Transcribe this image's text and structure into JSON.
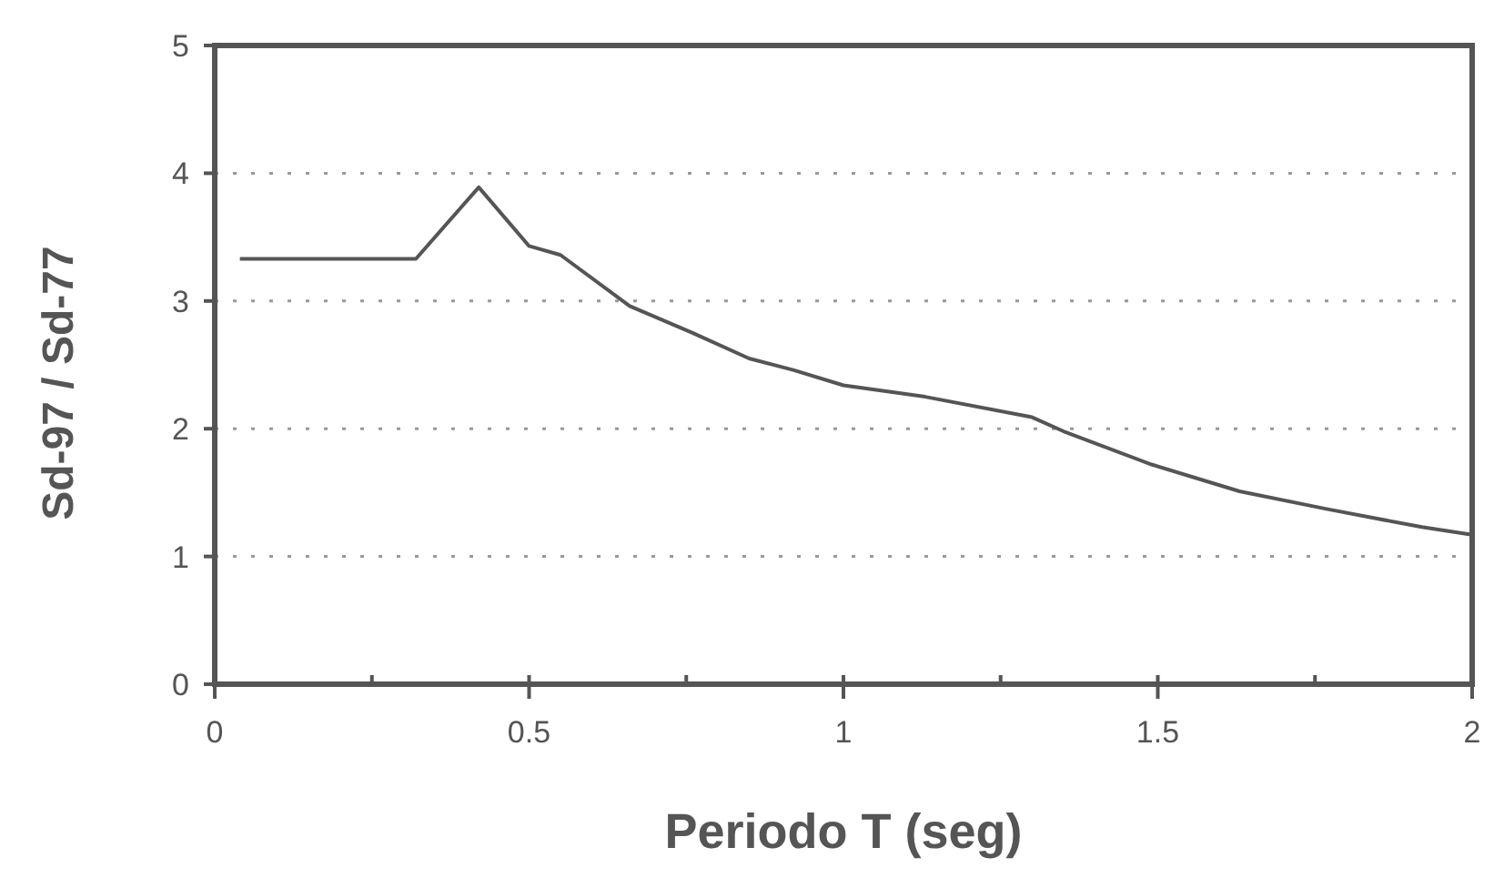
{
  "chart_data": {
    "type": "line",
    "xlabel": "Periodo  T (seg)",
    "ylabel": "Sd-97 / Sd-77",
    "x": [
      0.04,
      0.32,
      0.42,
      0.5,
      0.55,
      0.66,
      0.76,
      0.85,
      0.92,
      1.0,
      1.13,
      1.3,
      1.35,
      1.49,
      1.63,
      1.77,
      1.92,
      2.0
    ],
    "series": [
      {
        "color": "#555555",
        "values": [
          3.33,
          3.33,
          3.89,
          3.43,
          3.36,
          2.96,
          2.75,
          2.55,
          2.46,
          2.34,
          2.25,
          2.09,
          1.98,
          1.72,
          1.51,
          1.37,
          1.23,
          1.17
        ]
      }
    ],
    "xlim": [
      0,
      2
    ],
    "xticks": [
      0,
      {
        "value": 0.25,
        "label": null
      },
      0.5,
      {
        "value": 0.75,
        "label": null
      },
      1,
      {
        "value": 1.25,
        "label": null
      },
      1.5,
      {
        "value": 1.75,
        "label": null
      },
      2
    ],
    "ylim": [
      0,
      5
    ],
    "yticks": [
      0,
      1,
      2,
      3,
      4,
      5
    ],
    "grid": "y",
    "line_style": "solid",
    "marker": "none"
  }
}
